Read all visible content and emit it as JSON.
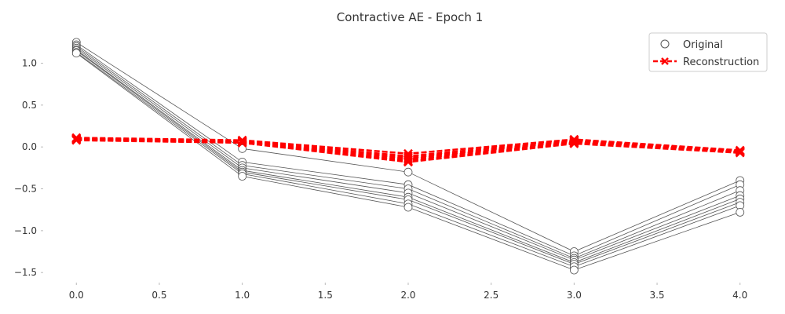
{
  "chart_data": {
    "type": "line",
    "title": "Contractive AE - Epoch 1",
    "xlabel": "",
    "ylabel": "",
    "xlim": [
      -0.2,
      4.2
    ],
    "ylim": [
      -1.62,
      1.38
    ],
    "x_ticks": [
      0.0,
      0.5,
      1.0,
      1.5,
      2.0,
      2.5,
      3.0,
      3.5,
      4.0
    ],
    "x_tick_labels": [
      "0.0",
      "0.5",
      "1.0",
      "1.5",
      "2.0",
      "2.5",
      "3.0",
      "3.5",
      "4.0"
    ],
    "y_ticks": [
      1.0,
      0.5,
      0.0,
      -0.5,
      -1.0,
      -1.5
    ],
    "y_tick_labels": [
      "1.0",
      "0.5",
      "0.0",
      "−0.5",
      "−1.0",
      "−1.5"
    ],
    "grid": false,
    "legend": {
      "placement": "top-right",
      "entries": [
        "Original",
        "Reconstruction"
      ]
    },
    "colors": {
      "original": "#555555",
      "reconstruction": "#ff0000"
    },
    "x": [
      0,
      1,
      2,
      3,
      4
    ],
    "series": [
      {
        "group": "Original",
        "values": [
          1.25,
          -0.02,
          -0.3,
          -1.25,
          -0.4
        ]
      },
      {
        "group": "Original",
        "values": [
          1.22,
          -0.18,
          -0.45,
          -1.3,
          -0.45
        ]
      },
      {
        "group": "Original",
        "values": [
          1.2,
          -0.22,
          -0.5,
          -1.33,
          -0.52
        ]
      },
      {
        "group": "Original",
        "values": [
          1.18,
          -0.25,
          -0.55,
          -1.35,
          -0.58
        ]
      },
      {
        "group": "Original",
        "values": [
          1.16,
          -0.28,
          -0.6,
          -1.38,
          -0.62
        ]
      },
      {
        "group": "Original",
        "values": [
          1.15,
          -0.3,
          -0.63,
          -1.4,
          -0.66
        ]
      },
      {
        "group": "Original",
        "values": [
          1.13,
          -0.32,
          -0.68,
          -1.43,
          -0.7
        ]
      },
      {
        "group": "Original",
        "values": [
          1.12,
          -0.35,
          -0.72,
          -1.47,
          -0.78
        ]
      },
      {
        "group": "Reconstruction",
        "values": [
          0.11,
          0.08,
          -0.08,
          0.09,
          -0.04
        ]
      },
      {
        "group": "Reconstruction",
        "values": [
          0.1,
          0.07,
          -0.11,
          0.08,
          -0.05
        ]
      },
      {
        "group": "Reconstruction",
        "values": [
          0.1,
          0.06,
          -0.13,
          0.07,
          -0.05
        ]
      },
      {
        "group": "Reconstruction",
        "values": [
          0.09,
          0.06,
          -0.15,
          0.06,
          -0.06
        ]
      },
      {
        "group": "Reconstruction",
        "values": [
          0.09,
          0.05,
          -0.17,
          0.05,
          -0.06
        ]
      },
      {
        "group": "Reconstruction",
        "values": [
          0.08,
          0.05,
          -0.18,
          0.04,
          -0.07
        ]
      }
    ]
  }
}
